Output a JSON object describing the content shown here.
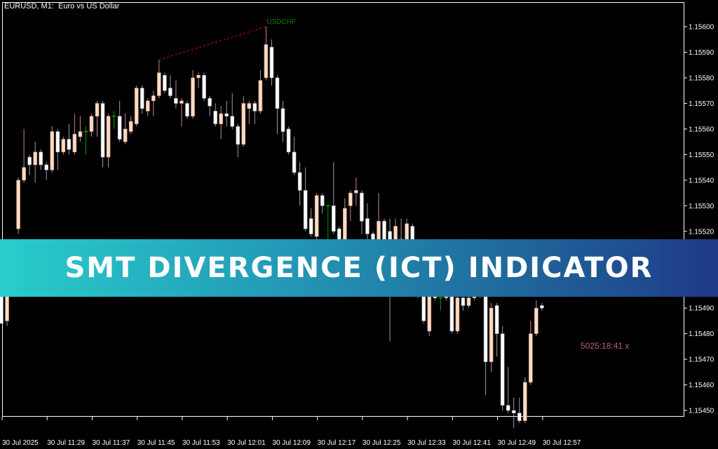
{
  "header": {
    "symbol_title": "EURUSD, M1:  Euro vs US Dollar"
  },
  "banner": {
    "title": "SMT DIVERGENCE (ICT) INDICATOR"
  },
  "timer": {
    "text": "5025:18:41 x"
  },
  "colors": {
    "background": "#000000",
    "bull_body": "#ffdcc0",
    "bear_body": "#ffffff",
    "doji": "#00a000",
    "divergence_line": "#e00000",
    "divergence_label": "#008000",
    "banner_start": "#29cdcc",
    "banner_end": "#1f3a88",
    "timer": "#b86474"
  },
  "chart_data": {
    "type": "candlestick",
    "symbol": "EURUSD",
    "timeframe": "M1",
    "ylim": [
      1.1544,
      1.15605
    ],
    "y_ticks": [
      "1.15600",
      "1.15590",
      "1.15580",
      "1.15570",
      "1.15560",
      "1.15550",
      "1.15540",
      "1.15530",
      "1.15520",
      "1.15510",
      "1.15500",
      "1.15490",
      "1.15480",
      "1.15470",
      "1.15460",
      "1.15450"
    ],
    "x_tick_labels": [
      "30 Jul 2025",
      "30 Jul 11:29",
      "30 Jul 11:37",
      "30 Jul 11:45",
      "30 Jul 11:53",
      "30 Jul 12:01",
      "30 Jul 12:09",
      "30 Jul 12:17",
      "30 Jul 12:25",
      "30 Jul 12:33",
      "30 Jul 12:41",
      "30 Jul 12:49",
      "30 Jul 12:57"
    ],
    "x_tick_every_bars": 8,
    "ohlc_columns": [
      "open",
      "high",
      "low",
      "close"
    ],
    "ohlc": [
      [
        1.15499,
        1.15501,
        1.15484,
        1.15484
      ],
      [
        1.15485,
        1.15499,
        1.15483,
        1.15498
      ],
      [
        1.15498,
        1.15517,
        1.15497,
        1.15516
      ],
      [
        1.15521,
        1.15541,
        1.15519,
        1.1554
      ],
      [
        1.1554,
        1.1556,
        1.15539,
        1.15545
      ],
      [
        1.15549,
        1.1555,
        1.15542,
        1.15546
      ],
      [
        1.15546,
        1.15555,
        1.15539,
        1.15551
      ],
      [
        1.15551,
        1.15552,
        1.15544,
        1.15546
      ],
      [
        1.15546,
        1.15547,
        1.1554,
        1.15544
      ],
      [
        1.15544,
        1.15561,
        1.15543,
        1.15559
      ],
      [
        1.15559,
        1.1556,
        1.15544,
        1.15551
      ],
      [
        1.15551,
        1.15557,
        1.1555,
        1.15556
      ],
      [
        1.15556,
        1.15562,
        1.1555,
        1.15552
      ],
      [
        1.15551,
        1.15566,
        1.1555,
        1.15558
      ],
      [
        1.15557,
        1.15565,
        1.15555,
        1.15559
      ],
      [
        1.15559,
        1.15561,
        1.1555,
        1.15559
      ],
      [
        1.15559,
        1.15566,
        1.15557,
        1.15565
      ],
      [
        1.15565,
        1.15571,
        1.15557,
        1.1557
      ],
      [
        1.1557,
        1.15571,
        1.15545,
        1.15549
      ],
      [
        1.15549,
        1.15566,
        1.15545,
        1.15565
      ],
      [
        1.15565,
        1.15567,
        1.1556,
        1.15565
      ],
      [
        1.15565,
        1.15571,
        1.15555,
        1.15556
      ],
      [
        1.15555,
        1.15566,
        1.15554,
        1.1556
      ],
      [
        1.15559,
        1.15565,
        1.15558,
        1.15563
      ],
      [
        1.15562,
        1.15577,
        1.15561,
        1.15576
      ],
      [
        1.15576,
        1.15577,
        1.15566,
        1.15568
      ],
      [
        1.15567,
        1.15572,
        1.15565,
        1.15571
      ],
      [
        1.15571,
        1.15575,
        1.15565,
        1.15573
      ],
      [
        1.15573,
        1.15587,
        1.15572,
        1.15582
      ],
      [
        1.15581,
        1.15582,
        1.15574,
        1.15575
      ],
      [
        1.15576,
        1.15581,
        1.15572,
        1.15573
      ],
      [
        1.15572,
        1.15579,
        1.15568,
        1.1557
      ],
      [
        1.1557,
        1.15572,
        1.15561,
        1.15571
      ],
      [
        1.1557,
        1.15571,
        1.15564,
        1.15565
      ],
      [
        1.15565,
        1.15583,
        1.15564,
        1.1558
      ],
      [
        1.1558,
        1.15582,
        1.15576,
        1.15581
      ],
      [
        1.15581,
        1.15582,
        1.15571,
        1.15572
      ],
      [
        1.15572,
        1.15573,
        1.15565,
        1.15569
      ],
      [
        1.15567,
        1.1557,
        1.15561,
        1.15562
      ],
      [
        1.15562,
        1.15569,
        1.15556,
        1.15566
      ],
      [
        1.15566,
        1.15571,
        1.15561,
        1.15565
      ],
      [
        1.15565,
        1.15574,
        1.1556,
        1.15561
      ],
      [
        1.15561,
        1.15562,
        1.15549,
        1.15554
      ],
      [
        1.15554,
        1.15573,
        1.15553,
        1.1557
      ],
      [
        1.15568,
        1.15571,
        1.15562,
        1.1557
      ],
      [
        1.1557,
        1.15571,
        1.15562,
        1.15567
      ],
      [
        1.15567,
        1.15583,
        1.15566,
        1.15579
      ],
      [
        1.1558,
        1.156,
        1.15579,
        1.15593
      ],
      [
        1.15592,
        1.15595,
        1.15577,
        1.1558
      ],
      [
        1.1558,
        1.15581,
        1.15558,
        1.15568
      ],
      [
        1.15568,
        1.15571,
        1.15555,
        1.15559
      ],
      [
        1.1556,
        1.15561,
        1.1555,
        1.15551
      ],
      [
        1.15551,
        1.15557,
        1.15542,
        1.15543
      ],
      [
        1.15543,
        1.15547,
        1.1553,
        1.15536
      ],
      [
        1.15536,
        1.15545,
        1.1552,
        1.15521
      ],
      [
        1.15525,
        1.15529,
        1.15518,
        1.15519
      ],
      [
        1.15518,
        1.15535,
        1.15516,
        1.15534
      ],
      [
        1.15534,
        1.15535,
        1.15527,
        1.1553
      ],
      [
        1.1553,
        1.1553,
        1.15516,
        1.1553
      ],
      [
        1.1553,
        1.15547,
        1.15519,
        1.1552
      ],
      [
        1.15521,
        1.15522,
        1.15513,
        1.15514
      ],
      [
        1.15514,
        1.15533,
        1.15513,
        1.15529
      ],
      [
        1.1553,
        1.15536,
        1.15524,
        1.15535
      ],
      [
        1.15535,
        1.15541,
        1.1553,
        1.15536
      ],
      [
        1.15535,
        1.15536,
        1.15519,
        1.15524
      ],
      [
        1.15525,
        1.15531,
        1.15516,
        1.15519
      ],
      [
        1.15519,
        1.1552,
        1.15513,
        1.15514
      ],
      [
        1.15514,
        1.15535,
        1.15513,
        1.15524
      ],
      [
        1.15524,
        1.15525,
        1.15513,
        1.15514
      ],
      [
        1.1552,
        1.15525,
        1.15477,
        1.15495
      ],
      [
        1.15512,
        1.15525,
        1.1551,
        1.15522
      ],
      [
        1.15506,
        1.15525,
        1.15505,
        1.15517
      ],
      [
        1.15502,
        1.15525,
        1.15501,
        1.15523
      ],
      [
        1.15522,
        1.15523,
        1.15499,
        1.15501
      ],
      [
        1.15502,
        1.15503,
        1.15494,
        1.15495
      ],
      [
        1.15497,
        1.15498,
        1.15484,
        1.15485
      ],
      [
        1.15481,
        1.15497,
        1.15479,
        1.15495
      ],
      [
        1.15495,
        1.15498,
        1.15493,
        1.15494
      ],
      [
        1.15494,
        1.15497,
        1.15489,
        1.15494
      ],
      [
        1.15494,
        1.15498,
        1.15493,
        1.15497
      ],
      [
        1.15497,
        1.15498,
        1.1548,
        1.15481
      ],
      [
        1.15481,
        1.15496,
        1.1548,
        1.15494
      ],
      [
        1.15494,
        1.15495,
        1.15489,
        1.15491
      ],
      [
        1.15491,
        1.15496,
        1.1549,
        1.15494
      ],
      [
        1.15494,
        1.15499,
        1.15493,
        1.15497
      ],
      [
        1.15497,
        1.15498,
        1.15494,
        1.15495
      ],
      [
        1.15495,
        1.15497,
        1.15456,
        1.15469
      ],
      [
        1.15469,
        1.15492,
        1.15465,
        1.1549
      ],
      [
        1.15491,
        1.15492,
        1.15471,
        1.1548
      ],
      [
        1.1548,
        1.15483,
        1.1545,
        1.15452
      ],
      [
        1.15452,
        1.15467,
        1.15449,
        1.1545
      ],
      [
        1.1545,
        1.15455,
        1.15443,
        1.15449
      ],
      [
        1.15449,
        1.15455,
        1.15445,
        1.15446
      ],
      [
        1.15446,
        1.15463,
        1.15445,
        1.15461
      ],
      [
        1.15461,
        1.15485,
        1.1546,
        1.1548
      ],
      [
        1.1548,
        1.15493,
        1.15479,
        1.1549
      ],
      [
        1.15491,
        1.15492,
        1.15489,
        1.1549
      ]
    ],
    "annotations": [
      {
        "type": "divergence_line",
        "label": "USDCHF",
        "from_bar": 28,
        "from_price": 1.15587,
        "to_bar": 47,
        "to_price": 1.156
      }
    ],
    "grid": false
  }
}
